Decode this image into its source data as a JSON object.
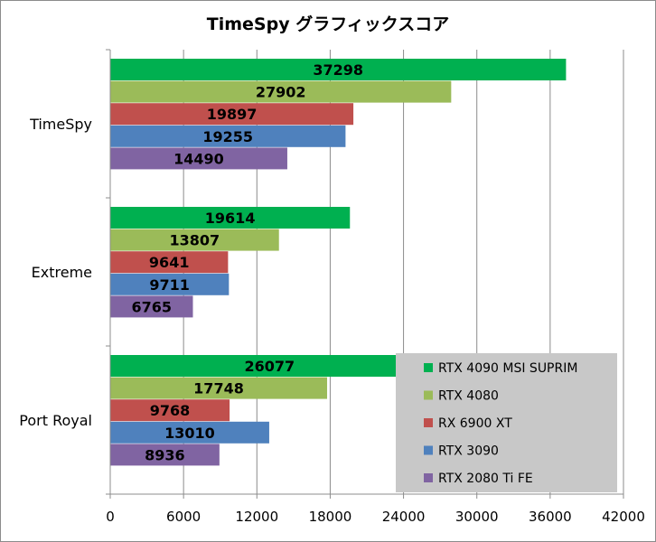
{
  "chart_data": {
    "type": "bar",
    "orientation": "horizontal",
    "title": "TimeSpy グラフィックスコア",
    "categories": [
      "TimeSpy",
      "Extreme",
      "Port Royal"
    ],
    "series": [
      {
        "name": "RTX 4090 MSI SUPRIM",
        "color": "#00b050",
        "values": [
          37298,
          19614,
          26077
        ]
      },
      {
        "name": "RTX 4080",
        "color": "#9bbb59",
        "values": [
          27902,
          13807,
          17748
        ]
      },
      {
        "name": "RX 6900 XT",
        "color": "#c0504d",
        "values": [
          19897,
          9641,
          9768
        ]
      },
      {
        "name": "RTX 3090",
        "color": "#4f81bd",
        "values": [
          19255,
          9711,
          13010
        ]
      },
      {
        "name": "RTX 2080 Ti FE",
        "color": "#8064a2",
        "values": [
          14490,
          6765,
          8936
        ]
      }
    ],
    "xlim": [
      0,
      42000
    ],
    "xticks": [
      0,
      6000,
      12000,
      18000,
      24000,
      30000,
      36000,
      42000
    ],
    "xlabel": "",
    "ylabel": "",
    "grid": "vertical",
    "legend": "bottom-right",
    "data_labels": true
  }
}
